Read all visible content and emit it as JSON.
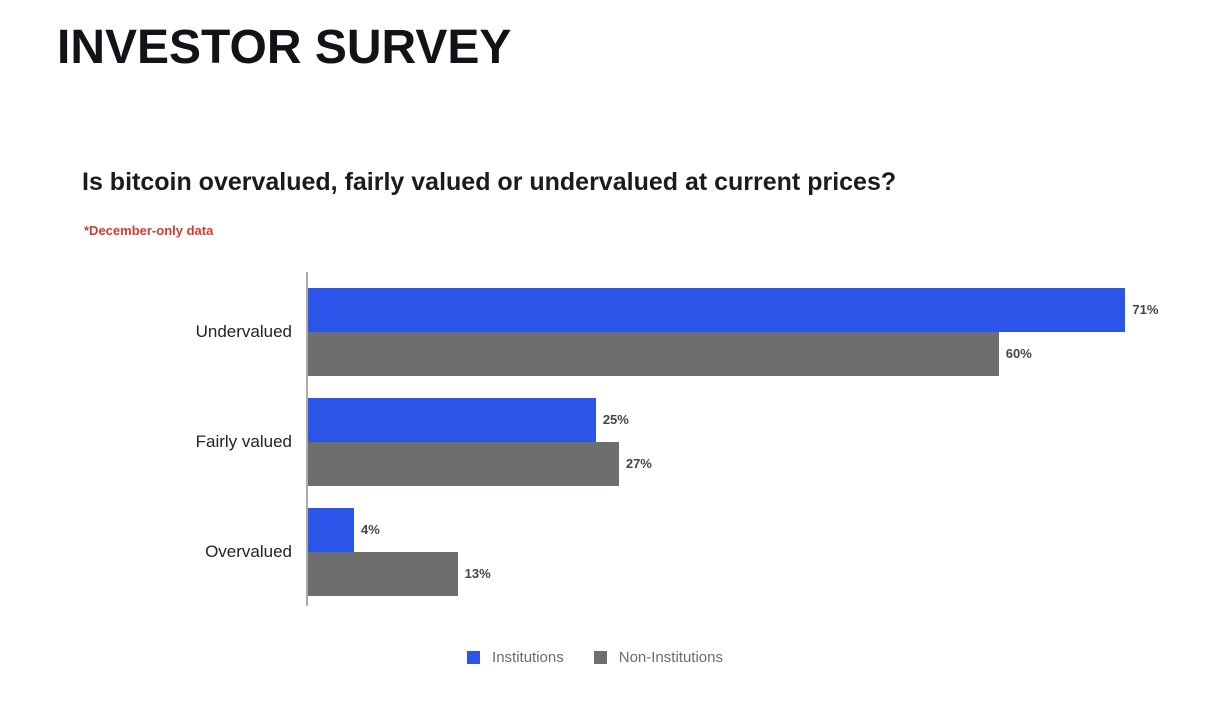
{
  "page": {
    "title": "INVESTOR SURVEY"
  },
  "chart_data": {
    "type": "bar",
    "orientation": "horizontal",
    "title": "Is bitcoin overvalued, fairly valued or undervalued at current prices?",
    "note": "*December-only data",
    "categories": [
      "Undervalued",
      "Fairly valued",
      "Overvalued"
    ],
    "series": [
      {
        "name": "Institutions",
        "color": "#2b55e8",
        "values": [
          71,
          25,
          4
        ]
      },
      {
        "name": "Non-Institutions",
        "color": "#6d6e70",
        "values": [
          60,
          27,
          13
        ]
      }
    ],
    "value_suffix": "%",
    "xlim": [
      0,
      78
    ],
    "grid": false,
    "legend_position": "bottom",
    "note_color": "#d43b30",
    "axis_color": "#acacac",
    "label_color": "#454547"
  }
}
